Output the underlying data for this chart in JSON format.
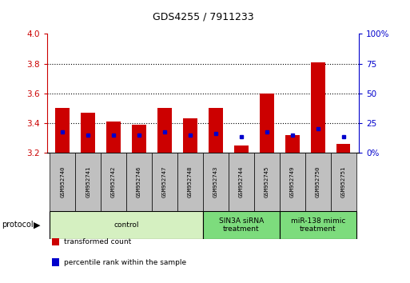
{
  "title": "GDS4255 / 7911233",
  "samples": [
    "GSM952740",
    "GSM952741",
    "GSM952742",
    "GSM952746",
    "GSM952747",
    "GSM952748",
    "GSM952743",
    "GSM952744",
    "GSM952745",
    "GSM952749",
    "GSM952750",
    "GSM952751"
  ],
  "red_bar_top": [
    3.5,
    3.47,
    3.41,
    3.39,
    3.5,
    3.43,
    3.5,
    3.25,
    3.6,
    3.32,
    3.81,
    3.26
  ],
  "red_bar_bottom": [
    3.2,
    3.2,
    3.2,
    3.2,
    3.2,
    3.2,
    3.2,
    3.2,
    3.2,
    3.2,
    3.2,
    3.2
  ],
  "blue_dot_y": [
    3.34,
    3.32,
    3.32,
    3.32,
    3.34,
    3.32,
    3.33,
    3.31,
    3.34,
    3.32,
    3.36,
    3.31
  ],
  "ylim_left": [
    3.2,
    4.0
  ],
  "ylim_right": [
    0,
    100
  ],
  "yticks_left": [
    3.2,
    3.4,
    3.6,
    3.8,
    4.0
  ],
  "yticks_right": [
    0,
    25,
    50,
    75,
    100
  ],
  "ytick_labels_right": [
    "0%",
    "25",
    "50",
    "75",
    "100%"
  ],
  "grid_yticks": [
    3.4,
    3.6,
    3.8
  ],
  "groups": [
    {
      "label": "control",
      "start": 0,
      "end": 6,
      "color": "#d5f0c1"
    },
    {
      "label": "SIN3A siRNA\ntreatment",
      "start": 6,
      "end": 9,
      "color": "#7ddc7d"
    },
    {
      "label": "miR-138 mimic\ntreatment",
      "start": 9,
      "end": 12,
      "color": "#7ddc7d"
    }
  ],
  "protocol_label": "protocol",
  "red_color": "#cc0000",
  "blue_color": "#0000cc",
  "bar_width": 0.55,
  "label_box_color": "#c0c0c0",
  "left_axis_color": "#cc0000",
  "right_axis_color": "#0000cc",
  "legend_items": [
    {
      "color": "#cc0000",
      "label": "transformed count"
    },
    {
      "color": "#0000cc",
      "label": "percentile rank within the sample"
    }
  ]
}
